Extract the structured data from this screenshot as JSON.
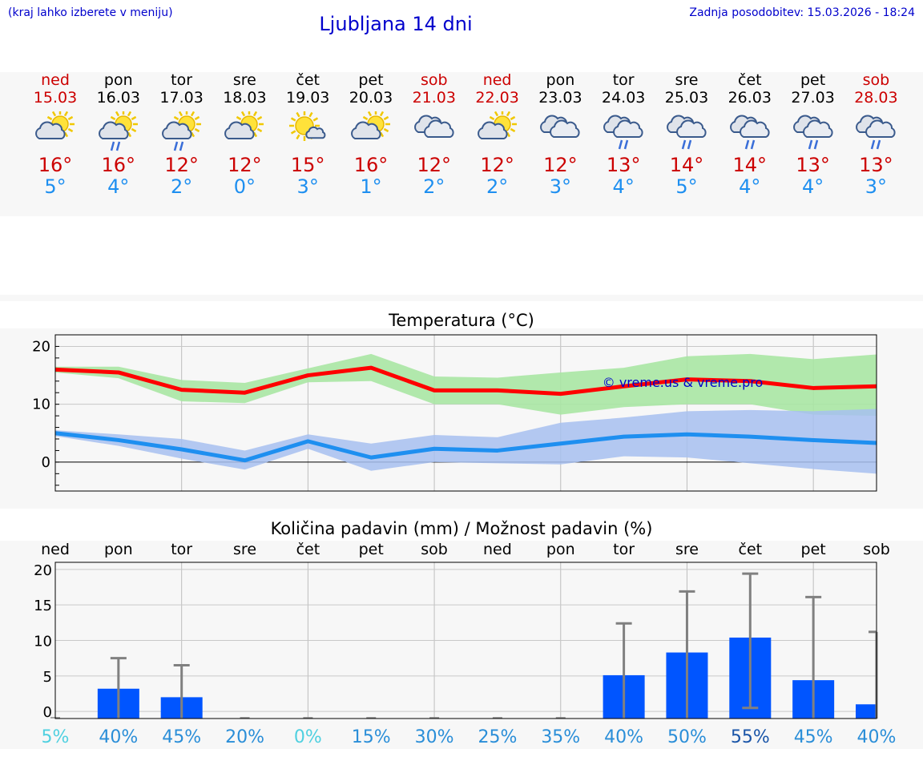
{
  "header": {
    "hint": "(kraj lahko izberete v meniju)",
    "title": "Ljubljana 14 dni",
    "updated": "Zadnja posodobitev: 15.03.2026 - 18:24"
  },
  "colors": {
    "weekend": "#cc0000",
    "weekday": "#000000",
    "tmax_line": "#ff0000",
    "tmin_line": "#1e8ff0",
    "tmax_band": "#a8e6a3",
    "tmin_band": "#a7bff0",
    "precip_bar": "#0055ff",
    "error_bar": "#808080"
  },
  "forecast": [
    {
      "day": "ned",
      "date": "15.03",
      "weekend": true,
      "icon": "partly-cloudy-icon",
      "tmax": "16°",
      "tmin": "5°"
    },
    {
      "day": "pon",
      "date": "16.03",
      "weekend": false,
      "icon": "partly-cloudy-rain-icon",
      "tmax": "16°",
      "tmin": "4°"
    },
    {
      "day": "tor",
      "date": "17.03",
      "weekend": false,
      "icon": "partly-cloudy-rain-icon",
      "tmax": "12°",
      "tmin": "2°"
    },
    {
      "day": "sre",
      "date": "18.03",
      "weekend": false,
      "icon": "partly-cloudy-icon",
      "tmax": "12°",
      "tmin": "0°"
    },
    {
      "day": "čet",
      "date": "19.03",
      "weekend": false,
      "icon": "sunny-small-cloud-icon",
      "tmax": "15°",
      "tmin": "3°"
    },
    {
      "day": "pet",
      "date": "20.03",
      "weekend": false,
      "icon": "partly-cloudy-icon",
      "tmax": "16°",
      "tmin": "1°"
    },
    {
      "day": "sob",
      "date": "21.03",
      "weekend": true,
      "icon": "cloudy-icon",
      "tmax": "12°",
      "tmin": "2°"
    },
    {
      "day": "ned",
      "date": "22.03",
      "weekend": true,
      "icon": "partly-cloudy-icon",
      "tmax": "12°",
      "tmin": "2°"
    },
    {
      "day": "pon",
      "date": "23.03",
      "weekend": false,
      "icon": "cloudy-icon",
      "tmax": "12°",
      "tmin": "3°"
    },
    {
      "day": "tor",
      "date": "24.03",
      "weekend": false,
      "icon": "cloudy-rain-icon",
      "tmax": "13°",
      "tmin": "4°"
    },
    {
      "day": "sre",
      "date": "25.03",
      "weekend": false,
      "icon": "cloudy-rain-icon",
      "tmax": "14°",
      "tmin": "5°"
    },
    {
      "day": "čet",
      "date": "26.03",
      "weekend": false,
      "icon": "cloudy-rain-icon",
      "tmax": "14°",
      "tmin": "4°"
    },
    {
      "day": "pet",
      "date": "27.03",
      "weekend": false,
      "icon": "cloudy-rain-icon",
      "tmax": "13°",
      "tmin": "4°"
    },
    {
      "day": "sob",
      "date": "28.03",
      "weekend": true,
      "icon": "cloudy-rain-icon",
      "tmax": "13°",
      "tmin": "3°"
    }
  ],
  "chart_data": [
    {
      "type": "line",
      "title": "Temperatura (°C)",
      "watermark": "© vreme.us & vreme.pro",
      "x": [
        0,
        1,
        2,
        3,
        4,
        5,
        6,
        7,
        8,
        9,
        10,
        11,
        12,
        13
      ],
      "ylim": [
        -5,
        22
      ],
      "yticks": [
        0,
        10,
        20
      ],
      "grid": true,
      "series": [
        {
          "key": "tmax",
          "values": [
            16,
            15.5,
            12.5,
            12,
            15,
            16.3,
            12.4,
            12.4,
            11.8,
            13.1,
            14.3,
            14,
            12.8,
            13.1
          ],
          "band_low": [
            15.5,
            14.5,
            10.5,
            10.2,
            13.8,
            14,
            10,
            10,
            8.2,
            9.5,
            10,
            10,
            8.2,
            8
          ],
          "band_high": [
            16.5,
            16.5,
            14.2,
            13.7,
            16.2,
            18.7,
            14.8,
            14.6,
            15.5,
            16.3,
            18.3,
            18.7,
            17.8,
            18.6
          ]
        },
        {
          "key": "tmin",
          "values": [
            5,
            3.8,
            2.2,
            0.3,
            3.6,
            0.8,
            2.3,
            2,
            3.2,
            4.4,
            4.8,
            4.4,
            3.8,
            3.3
          ],
          "band_low": [
            4.5,
            2.8,
            0.6,
            -1.3,
            2.3,
            -1.5,
            0,
            -0.2,
            -0.4,
            1,
            0.8,
            -0.2,
            -1.2,
            -2
          ],
          "band_high": [
            5.5,
            4.8,
            4,
            2,
            4.8,
            3.2,
            4.7,
            4.3,
            6.8,
            7.7,
            8.8,
            9,
            8.8,
            9.2
          ]
        }
      ]
    },
    {
      "type": "bar",
      "title": "Količina padavin (mm) / Možnost padavin (%)",
      "categories": [
        "ned",
        "pon",
        "tor",
        "sre",
        "čet",
        "pet",
        "sob",
        "ned",
        "pon",
        "tor",
        "sre",
        "čet",
        "pet",
        "sob"
      ],
      "values": [
        0,
        3.2,
        2,
        0,
        0,
        0,
        0,
        0,
        0,
        5.1,
        8.3,
        10.4,
        4.4,
        1
      ],
      "error_high": [
        0,
        7.5,
        6.5,
        0,
        0,
        0,
        0,
        0,
        0,
        12.4,
        16.9,
        19.4,
        16.1,
        11.2
      ],
      "error_low": [
        0,
        0,
        0,
        0,
        0,
        0,
        0,
        0,
        0,
        0,
        0,
        0.5,
        0,
        0
      ],
      "chance": [
        "5%",
        "40%",
        "45%",
        "20%",
        "0%",
        "15%",
        "30%",
        "25%",
        "35%",
        "40%",
        "50%",
        "55%",
        "45%",
        "40%"
      ],
      "chance_colors": [
        "#4fd0e0",
        "#2a8ed8",
        "#2a8ed8",
        "#2a8ed8",
        "#4fd0e0",
        "#2a8ed8",
        "#2a8ed8",
        "#2a8ed8",
        "#2a8ed8",
        "#2a8ed8",
        "#2a8ed8",
        "#1a55a8",
        "#2a8ed8",
        "#2a8ed8"
      ],
      "ylim": [
        -1,
        21
      ],
      "yticks": [
        0,
        5,
        10,
        15,
        20
      ],
      "grid": true
    }
  ]
}
